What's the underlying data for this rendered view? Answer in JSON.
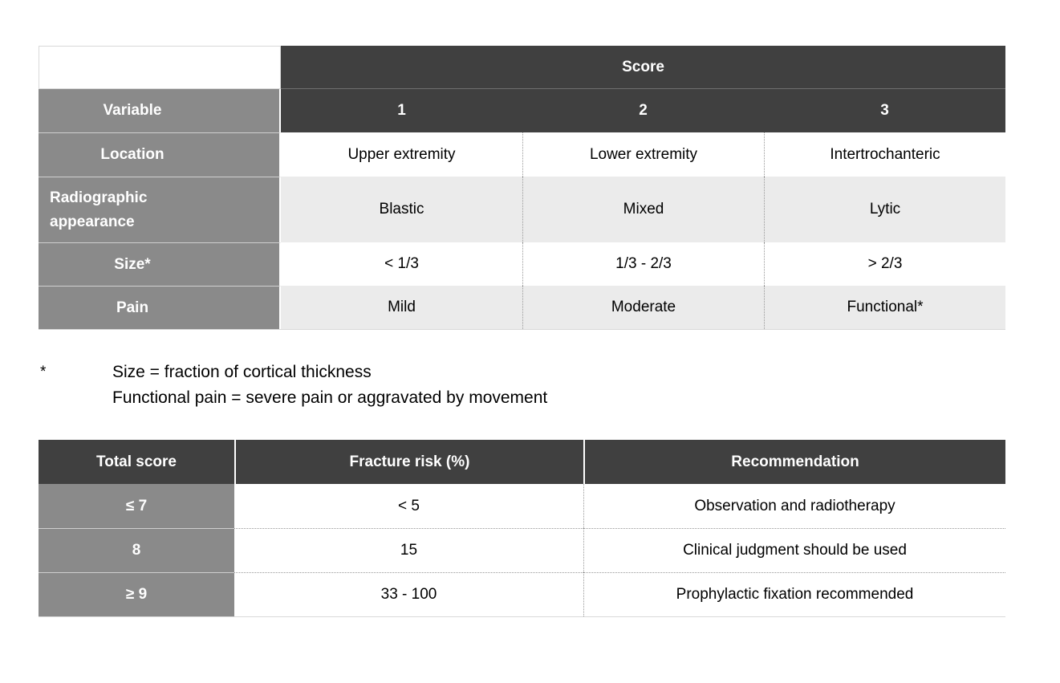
{
  "colors": {
    "header_dark": "#404040",
    "row_label_gray": "#8a8a8a",
    "row_alt_light": "#ebebeb",
    "dotted_border": "#999999"
  },
  "table1": {
    "score_header": "Score",
    "variable_header": "Variable",
    "score_columns": [
      "1",
      "2",
      "3"
    ],
    "rows": [
      {
        "label": "Location",
        "values": [
          "Upper extremity",
          "Lower extremity",
          "Intertrochanteric"
        ]
      },
      {
        "label": "Radiographic appearance",
        "values": [
          "Blastic",
          "Mixed",
          "Lytic"
        ]
      },
      {
        "label": "Size*",
        "values": [
          "< 1/3",
          "1/3 - 2/3",
          "> 2/3"
        ]
      },
      {
        "label": "Pain",
        "values": [
          "Mild",
          "Moderate",
          "Functional*"
        ]
      }
    ]
  },
  "footnote": {
    "marker": "*",
    "lines": [
      "Size = fraction of cortical thickness",
      "Functional pain = severe pain or aggravated by movement"
    ]
  },
  "table2": {
    "headers": [
      "Total score",
      "Fracture risk (%)",
      "Recommendation"
    ],
    "rows": [
      {
        "score": "≤ 7",
        "risk": "< 5",
        "recommendation": "Observation and radiotherapy"
      },
      {
        "score": "8",
        "risk": "15",
        "recommendation": "Clinical judgment should be used"
      },
      {
        "score": "≥ 9",
        "risk": "33 - 100",
        "recommendation": "Prophylactic fixation recommended"
      }
    ]
  }
}
